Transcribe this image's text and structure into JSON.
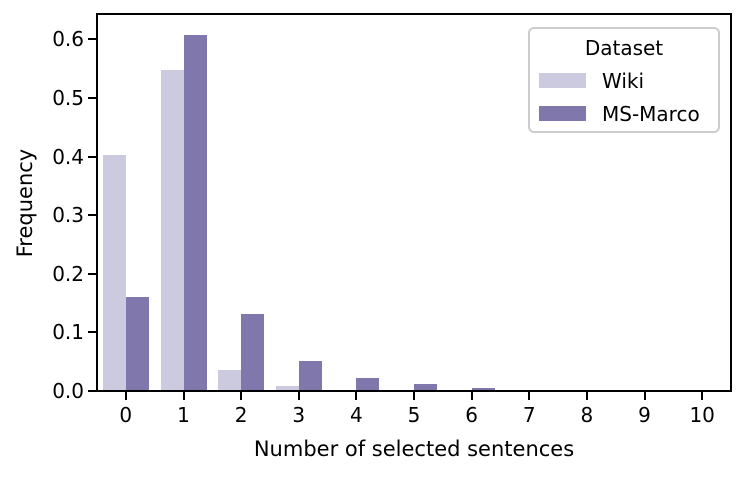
{
  "chart_data": {
    "type": "bar",
    "title": "",
    "xlabel": "Number of selected sentences",
    "ylabel": "Frequency",
    "categories": [
      "0",
      "1",
      "2",
      "3",
      "4",
      "5",
      "6",
      "7",
      "8",
      "9",
      "10"
    ],
    "series": [
      {
        "name": "Wiki",
        "color": "#cbcade",
        "values": [
          0.403,
          0.548,
          0.036,
          0.008,
          0.002,
          0,
          0,
          0,
          0,
          0,
          0
        ]
      },
      {
        "name": "MS-Marco",
        "color": "#8078ad",
        "values": [
          0.16,
          0.607,
          0.131,
          0.052,
          0.023,
          0.012,
          0.006,
          0.002,
          0.001,
          0,
          0
        ]
      }
    ],
    "yticks": [
      "0.0",
      "0.1",
      "0.2",
      "0.3",
      "0.4",
      "0.5",
      "0.6"
    ],
    "ylim": [
      0,
      0.643
    ],
    "grid": false,
    "legend": {
      "title": "Dataset",
      "position": "upper-right"
    },
    "colors": {
      "axis": "#000000",
      "legend_border": "#cccccc",
      "background": "#ffffff"
    }
  }
}
